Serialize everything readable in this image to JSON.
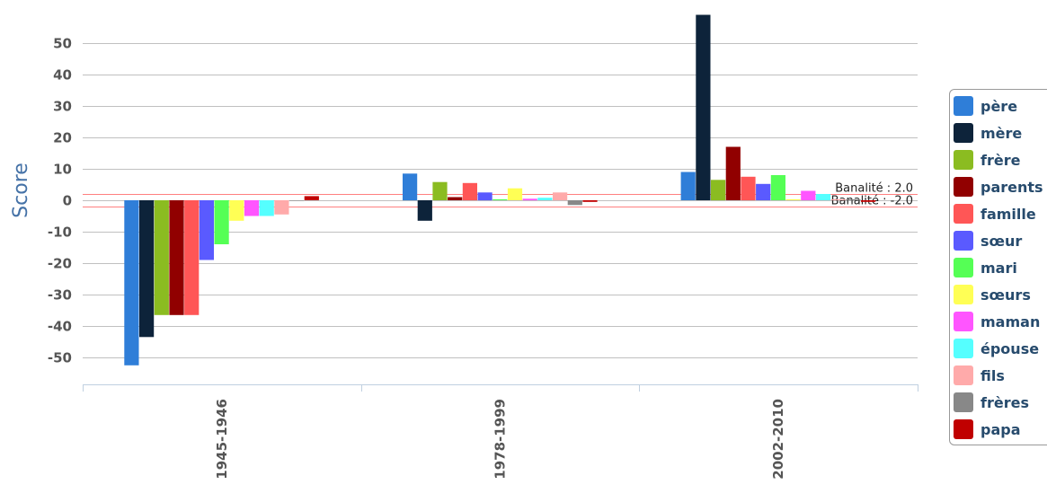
{
  "chart_data": {
    "type": "bar",
    "ylabel": "Score",
    "ylim": [
      -57,
      60
    ],
    "yticks": [
      "50",
      "40",
      "30",
      "20",
      "10",
      "0",
      "-10",
      "-20",
      "-30",
      "-40",
      "-50"
    ],
    "categories": [
      "1945-1946",
      "1978-1999",
      "2002-2010"
    ],
    "grid": true,
    "legend_position": "right",
    "reference_lines": [
      {
        "label": "Banalité : 2.0",
        "value": 2.0
      },
      {
        "label": "Banalité : -2.0",
        "value": -2.0
      }
    ],
    "series": [
      {
        "name": "père",
        "color": "#2f7ed8",
        "values": [
          -52.5,
          8.5,
          9
        ]
      },
      {
        "name": "mère",
        "color": "#0d233a",
        "values": [
          -43.5,
          -6.5,
          59
        ]
      },
      {
        "name": "frère",
        "color": "#8bbc21",
        "values": [
          -36.5,
          5.8,
          6.5
        ]
      },
      {
        "name": "parents",
        "color": "#910000",
        "values": [
          -36.5,
          1,
          17
        ]
      },
      {
        "name": "famille",
        "color": "#ff5656",
        "values": [
          -36.5,
          5.5,
          7.5
        ]
      },
      {
        "name": "sœur",
        "color": "#5a5aff",
        "values": [
          -19,
          2.5,
          5.2
        ]
      },
      {
        "name": "mari",
        "color": "#55ff55",
        "values": [
          -14,
          0.3,
          8
        ]
      },
      {
        "name": "sœurs",
        "color": "#ffff55",
        "values": [
          -6.5,
          3.8,
          0.3
        ]
      },
      {
        "name": "maman",
        "color": "#ff55ff",
        "values": [
          -5,
          0.5,
          3
        ]
      },
      {
        "name": "épouse",
        "color": "#55ffff",
        "values": [
          -5,
          0.8,
          2
        ]
      },
      {
        "name": "fils",
        "color": "#ffaaaa",
        "values": [
          -4.5,
          2.5,
          0.3
        ]
      },
      {
        "name": "frères",
        "color": "#888888",
        "values": [
          0,
          -1.5,
          0.3
        ]
      },
      {
        "name": "papa",
        "color": "#c00000",
        "values": [
          1.3,
          -0.5,
          -0.5
        ]
      }
    ]
  }
}
